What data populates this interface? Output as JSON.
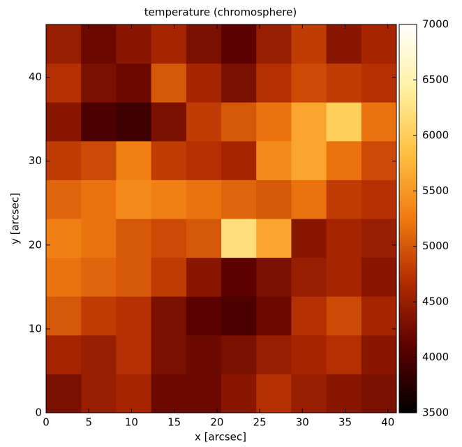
{
  "chart_data": {
    "type": "heatmap",
    "title": "temperature (chromosphere)",
    "x_label": "x [arcsec]",
    "y_label": "y [arcsec]",
    "xlim": [
      0,
      41
    ],
    "ylim": [
      0,
      46.3
    ],
    "xticks": [
      0,
      5,
      10,
      15,
      20,
      25,
      30,
      35,
      40
    ],
    "yticks": [
      0,
      10,
      20,
      30,
      40
    ],
    "clim": [
      3500,
      7000
    ],
    "cticks": [
      3500,
      4000,
      4500,
      5000,
      5500,
      6000,
      6500,
      7000
    ],
    "colorscale": [
      "#000000",
      "#5a0000",
      "#b02a00",
      "#f07a10",
      "#ffc040",
      "#fff0a0",
      "#ffffff"
    ],
    "z": [
      [
        4300,
        4500,
        4600,
        4200,
        4200,
        4400,
        4700,
        4500,
        4400,
        4300
      ],
      [
        4600,
        4500,
        4700,
        4300,
        4200,
        4300,
        4500,
        4600,
        4700,
        4400
      ],
      [
        5000,
        4800,
        4700,
        4300,
        4100,
        4000,
        4200,
        4700,
        4900,
        4600
      ],
      [
        5200,
        5100,
        5000,
        4800,
        4400,
        4100,
        4300,
        4500,
        4600,
        4400
      ],
      [
        5300,
        5200,
        5000,
        4900,
        5000,
        6200,
        5600,
        4400,
        4600,
        4500
      ],
      [
        5100,
        5200,
        5400,
        5300,
        5200,
        5100,
        5000,
        5200,
        4800,
        4700
      ],
      [
        4800,
        4900,
        5300,
        4800,
        4700,
        4600,
        5400,
        5600,
        5200,
        4900
      ],
      [
        4400,
        4000,
        3900,
        4300,
        4800,
        5000,
        5200,
        5600,
        6000,
        5200
      ],
      [
        4700,
        4300,
        4200,
        5000,
        4600,
        4300,
        4700,
        4900,
        4800,
        4700
      ],
      [
        4500,
        4200,
        4400,
        4600,
        4300,
        4100,
        4500,
        4800,
        4400,
        4600
      ]
    ]
  }
}
